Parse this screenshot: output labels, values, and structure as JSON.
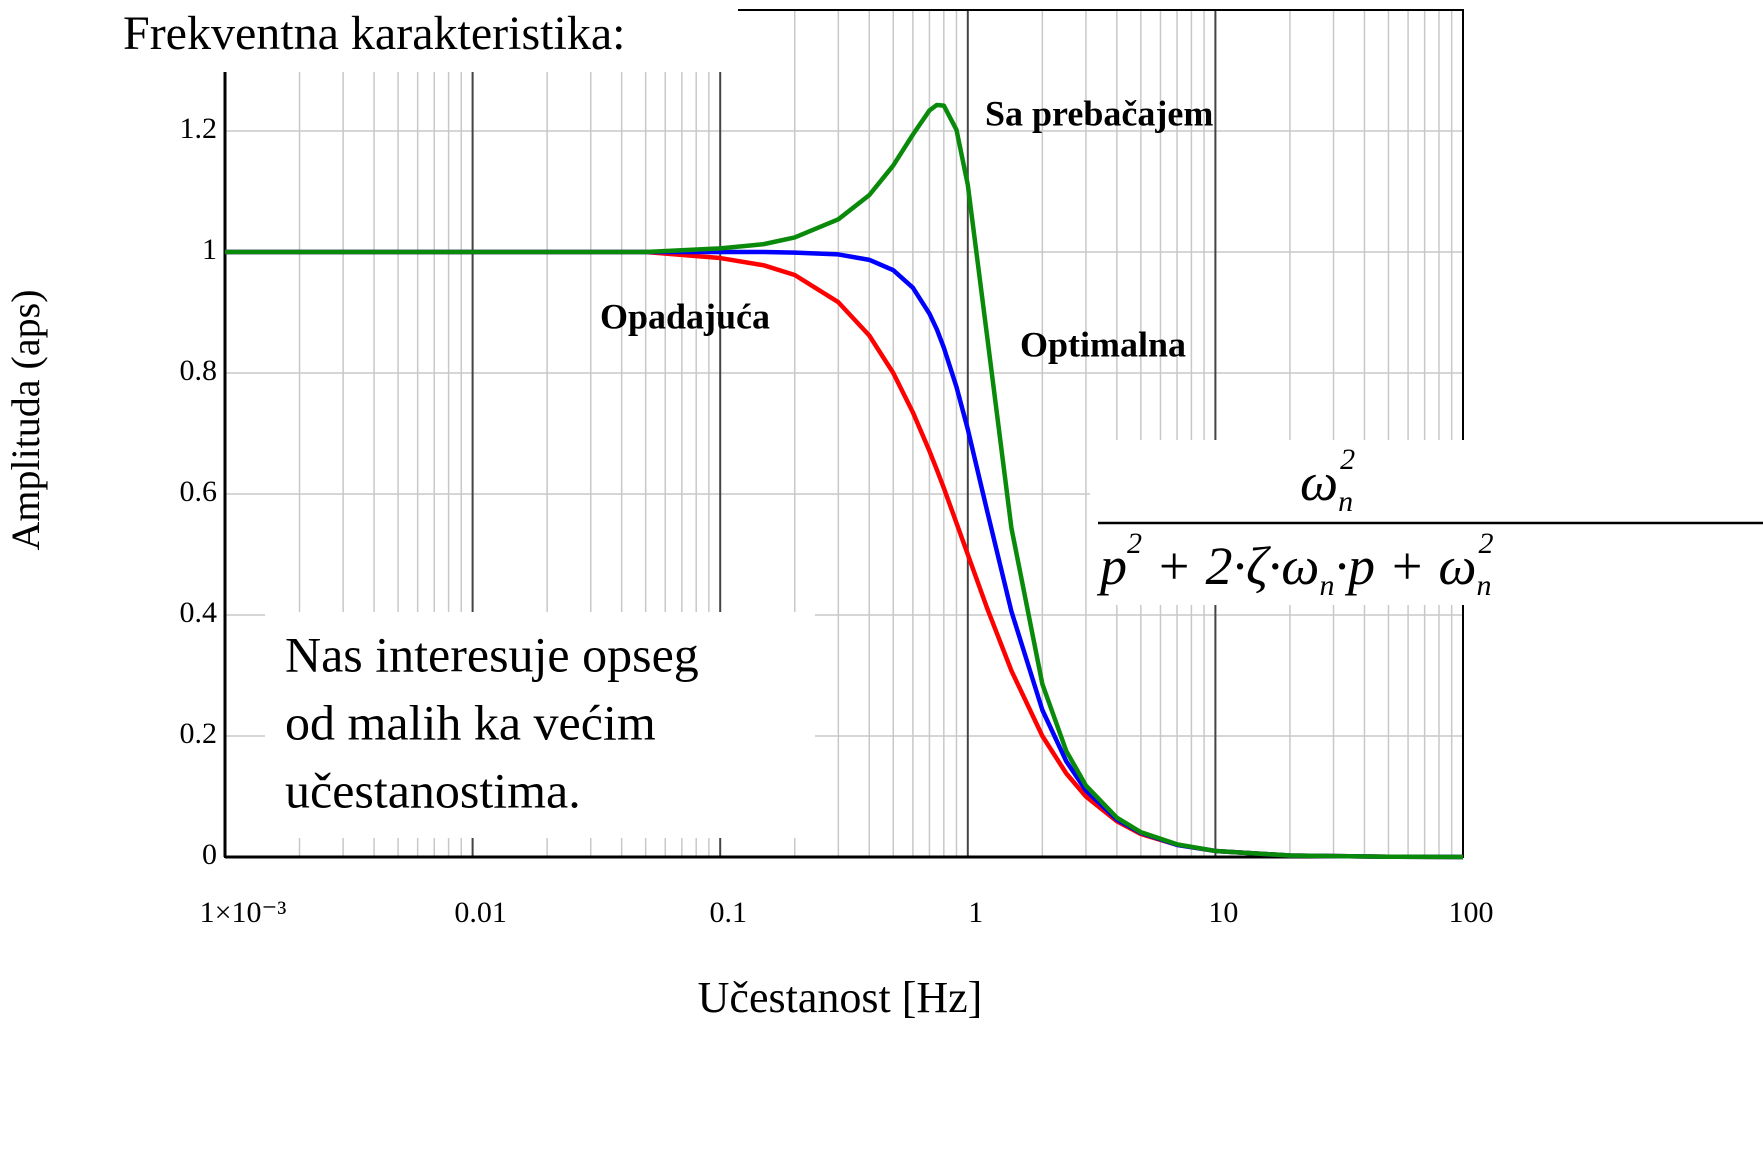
{
  "chart_data": {
    "type": "line",
    "title": "Frekventna karakteristika:",
    "xlabel": "Učestanost [Hz]",
    "ylabel": "Amplituda (aps)",
    "xscale": "log",
    "grid": true,
    "x": [
      0.001,
      0.01,
      0.05,
      0.1,
      0.15,
      0.2,
      0.3,
      0.4,
      0.5,
      0.6,
      0.7,
      0.75,
      0.8,
      0.9,
      1,
      1.2,
      1.5,
      2,
      2.5,
      3,
      4,
      5,
      7,
      10,
      20,
      50,
      100
    ],
    "series": [
      {
        "name": "Opadajuća",
        "color": "#ff0000",
        "values": [
          1,
          1,
          1,
          0.99,
          0.978,
          0.962,
          0.917,
          0.862,
          0.8,
          0.735,
          0.671,
          0.64,
          0.61,
          0.552,
          0.5,
          0.41,
          0.308,
          0.2,
          0.138,
          0.1,
          0.059,
          0.038,
          0.02,
          0.01,
          0.0025,
          0.0004,
          0.0001
        ]
      },
      {
        "name": "Optimalna",
        "color": "#0000ff",
        "values": [
          1,
          1,
          1,
          1,
          1,
          0.999,
          0.996,
          0.987,
          0.97,
          0.941,
          0.898,
          0.872,
          0.842,
          0.777,
          0.707,
          0.57,
          0.406,
          0.243,
          0.158,
          0.11,
          0.062,
          0.04,
          0.02,
          0.01,
          0.0025,
          0.0004,
          0.0001
        ]
      },
      {
        "name": "Sa prebačajem",
        "color": "#0a8a0a",
        "values": [
          1,
          1,
          1,
          1.006,
          1.013,
          1.024,
          1.054,
          1.094,
          1.143,
          1.194,
          1.234,
          1.243,
          1.242,
          1.202,
          1.111,
          0.857,
          0.544,
          0.286,
          0.175,
          0.118,
          0.065,
          0.041,
          0.021,
          0.01,
          0.0025,
          0.0004,
          0.0001
        ]
      }
    ],
    "xlim": [
      0.001,
      100
    ],
    "ylim": [
      0,
      1.4
    ],
    "xticks": [
      {
        "value": 0.001,
        "label": "1×10⁻³"
      },
      0.01,
      0.1,
      1,
      10,
      100
    ],
    "xminorticks": [
      0.002,
      0.003,
      0.004,
      0.005,
      0.006,
      0.007,
      0.008,
      0.009,
      0.02,
      0.03,
      0.04,
      0.05,
      0.06,
      0.07,
      0.08,
      0.09,
      0.2,
      0.3,
      0.4,
      0.5,
      0.6,
      0.7,
      0.8,
      0.9,
      2,
      3,
      4,
      5,
      6,
      7,
      8,
      9,
      20,
      30,
      40,
      50,
      60,
      70,
      80,
      90
    ],
    "yticks": [
      0,
      0.2,
      0.4,
      0.6,
      0.8,
      1,
      1.2
    ],
    "note": [
      "Nas interesuje opseg",
      "od malih ka većim",
      "učestanostima."
    ],
    "formula": {
      "numerator": {
        "text": "ω",
        "sub": "n",
        "sup": "2"
      },
      "denominator": [
        {
          "text": "p",
          "sup": "2"
        },
        {
          "text": " + 2·ζ·ω",
          "sub": "n"
        },
        {
          "text": "·p + ω",
          "sub": "n",
          "sup": "2"
        }
      ]
    }
  }
}
